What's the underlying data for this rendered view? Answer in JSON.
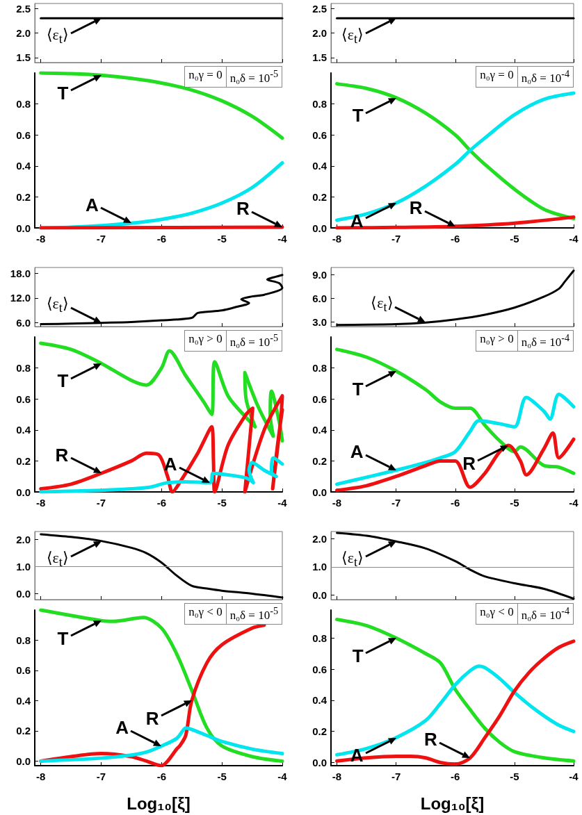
{
  "chart_data": [
    {
      "type": "line",
      "tick_labels": "y",
      "xlim": [
        -8.1,
        -4
      ],
      "xticks": [
        {
          "value": -8,
          "label": null
        },
        {
          "value": -7,
          "label": null
        },
        {
          "value": -6,
          "label": null
        },
        {
          "value": -5,
          "label": null
        },
        {
          "value": -4,
          "label": null
        }
      ],
      "ylim": [
        1.4,
        2.6
      ],
      "yticks": [
        {
          "value": 1.5,
          "label": "1.5"
        },
        {
          "value": 2,
          "label": "2.0"
        },
        {
          "value": 2.5,
          "label": "2.5"
        }
      ],
      "series": [
        {
          "color": "#000000",
          "x": [
            -8,
            -7,
            -6,
            -5,
            -4
          ],
          "values": [
            2.3,
            2.3,
            2.3,
            2.3,
            2.3
          ]
        }
      ],
      "annotations": [
        {
          "text": "⟨ε$_{t}$⟩",
          "x": -7,
          "y": 2.3
        }
      ]
    },
    {
      "type": "line",
      "tick_labels": "y",
      "xlim": [
        -8.1,
        -4
      ],
      "xticks": [
        {
          "value": -8,
          "label": null
        },
        {
          "value": -7,
          "label": null
        },
        {
          "value": -6,
          "label": null
        },
        {
          "value": -5,
          "label": null
        },
        {
          "value": -4,
          "label": null
        }
      ],
      "ylim": [
        1.4,
        2.6
      ],
      "yticks": [
        {
          "value": 1.5,
          "label": "1.5"
        },
        {
          "value": 2,
          "label": "2.0"
        },
        {
          "value": 2.5,
          "label": "2.5"
        }
      ],
      "series": [
        {
          "color": "#000000",
          "x": [
            -8,
            -7,
            -6,
            -5,
            -4
          ],
          "values": [
            2.3,
            2.3,
            2.3,
            2.3,
            2.3
          ]
        }
      ],
      "annotations": [
        {
          "text": "⟨ε$_{t}$⟩",
          "x": -7,
          "y": 2.3
        }
      ]
    },
    {
      "type": "line",
      "xlim": [
        -8.1,
        -4
      ],
      "xticks": [
        -8,
        -7,
        -6,
        -5,
        -4
      ],
      "ylim": [
        0,
        1.0
      ],
      "yticks": [
        {
          "value": 0,
          "label": "0.0"
        },
        0.2,
        0.4,
        0.6,
        0.8
      ],
      "series": [
        {
          "color": "#22dd22",
          "x": [
            -8,
            -7.5,
            -7,
            -6.5,
            -6,
            -5.5,
            -5,
            -4.5,
            -4
          ],
          "values": [
            1.0,
            0.995,
            0.985,
            0.965,
            0.935,
            0.89,
            0.82,
            0.72,
            0.58
          ]
        },
        {
          "color": "#00e5ee",
          "x": [
            -8,
            -7.5,
            -7,
            -6.5,
            -6,
            -5.5,
            -5,
            -4.5,
            -4
          ],
          "values": [
            0,
            0.005,
            0.015,
            0.03,
            0.055,
            0.095,
            0.16,
            0.26,
            0.42
          ]
        },
        {
          "color": "#ee1111",
          "x": [
            -8,
            -6,
            -4
          ],
          "values": [
            0,
            0.002,
            0.005
          ]
        }
      ],
      "annotations": [
        {
          "text": "T",
          "x": -7,
          "y": 0.985
        },
        {
          "text": "A",
          "x": -6.5,
          "y": 0.03
        },
        {
          "text": "R",
          "x": -4,
          "y": 0.005
        },
        "n₀γ = 0",
        "n₀δ = 10$^{-5}$"
      ]
    },
    {
      "type": "line",
      "xlim": [
        -8.1,
        -4
      ],
      "xticks": [
        -8,
        -7,
        -6,
        -5,
        -4
      ],
      "ylim": [
        0,
        1.0
      ],
      "yticks": [
        {
          "value": 0,
          "label": "0.0"
        },
        0.2,
        0.4,
        0.6,
        0.8
      ],
      "series": [
        {
          "color": "#22dd22",
          "x": [
            -8,
            -7.5,
            -7,
            -6.5,
            -6,
            -5.75,
            -5.5,
            -5,
            -4.5,
            -4
          ],
          "values": [
            0.93,
            0.9,
            0.84,
            0.74,
            0.6,
            0.5,
            0.41,
            0.25,
            0.12,
            0.06
          ]
        },
        {
          "color": "#00e5ee",
          "x": [
            -8,
            -7.5,
            -7,
            -6.5,
            -6,
            -5.75,
            -5.5,
            -5,
            -4.5,
            -4
          ],
          "values": [
            0.05,
            0.09,
            0.16,
            0.27,
            0.41,
            0.5,
            0.58,
            0.73,
            0.83,
            0.87
          ]
        },
        {
          "color": "#ee1111",
          "x": [
            -8,
            -7,
            -6,
            -5,
            -4
          ],
          "values": [
            0,
            0.003,
            0.01,
            0.03,
            0.07
          ]
        }
      ],
      "annotations": [
        {
          "text": "T",
          "x": -7,
          "y": 0.84
        },
        {
          "text": "A",
          "x": -7,
          "y": 0.16
        },
        {
          "text": "R",
          "x": -6,
          "y": 0.01
        },
        "n₀γ = 0",
        "n₀δ = 10$^{-4}$"
      ]
    },
    {
      "type": "line",
      "tick_labels": "y",
      "xlim": [
        -8.1,
        -4
      ],
      "xticks": [
        {
          "value": -8,
          "label": null
        },
        {
          "value": -7,
          "label": null
        },
        {
          "value": -6,
          "label": null
        },
        {
          "value": -5,
          "label": null
        },
        {
          "value": -4,
          "label": null
        }
      ],
      "ylim": [
        5.1,
        19.4
      ],
      "yticks": [
        {
          "value": 6,
          "label": "6.0"
        },
        {
          "value": 12,
          "label": "12.0"
        },
        {
          "value": 18,
          "label": "18.0"
        }
      ],
      "series": [
        {
          "color": "#000000",
          "x": [
            -8,
            -7.5,
            -7,
            -6.5,
            -6,
            -5.5,
            -5.4,
            -5,
            -4.75,
            -4.55,
            -4.68,
            -4.5,
            -4.3,
            -4.0,
            -4.05,
            -4.25,
            -4.1,
            -4.0
          ],
          "values": [
            5.7,
            5.8,
            6.0,
            6.2,
            6.6,
            7.2,
            8.4,
            9.0,
            9.9,
            10.8,
            11.7,
            12.4,
            12.8,
            14.5,
            15.6,
            16.5,
            17.2,
            17.6
          ]
        }
      ],
      "annotations": [
        {
          "text": "⟨ε$_{t}$⟩",
          "x": -7,
          "y": 6.0
        }
      ]
    },
    {
      "type": "line",
      "tick_labels": "y",
      "xlim": [
        -8.1,
        -4
      ],
      "xticks": [
        {
          "value": -8,
          "label": null
        },
        {
          "value": -7,
          "label": null
        },
        {
          "value": -6,
          "label": null
        },
        {
          "value": -5,
          "label": null
        },
        {
          "value": -4,
          "label": null
        }
      ],
      "ylim": [
        2.4,
        9.9
      ],
      "yticks": [
        {
          "value": 3,
          "label": "3.0"
        },
        {
          "value": 6,
          "label": "6.0"
        },
        {
          "value": 9,
          "label": "9.0"
        }
      ],
      "series": [
        {
          "color": "#000000",
          "x": [
            -8,
            -7,
            -6.5,
            -6,
            -5.5,
            -5,
            -4.5,
            -4.25,
            -4.15,
            -4
          ],
          "values": [
            2.6,
            2.7,
            2.9,
            3.3,
            3.9,
            4.8,
            6.2,
            7.2,
            8.1,
            9.5
          ]
        }
      ],
      "annotations": [
        {
          "text": "⟨ε$_{t}$⟩",
          "x": -6.5,
          "y": 2.9
        }
      ]
    },
    {
      "type": "line",
      "xlim": [
        -8.1,
        -4
      ],
      "xticks": [
        -8,
        -7,
        -6,
        -5,
        -4
      ],
      "ylim": [
        0,
        1.0
      ],
      "yticks": [
        {
          "value": 0,
          "label": "0.0"
        },
        0.2,
        0.4,
        0.6,
        0.8
      ],
      "series": [
        {
          "color": "#22dd22",
          "x": [
            -8,
            -7.5,
            -7,
            -6.5,
            -6.25,
            -6.0,
            -5.87,
            -5.6,
            -5.3,
            -5.17,
            -5.12,
            -4.9,
            -4.6,
            -4.45,
            -4.6,
            -4.62,
            -4.4,
            -4.15,
            -4.2,
            -4.18,
            -4.05,
            -4.0
          ],
          "values": [
            0.96,
            0.92,
            0.83,
            0.72,
            0.69,
            0.8,
            0.91,
            0.75,
            0.58,
            0.5,
            0.84,
            0.62,
            0.48,
            0.42,
            0.6,
            0.77,
            0.55,
            0.36,
            0.5,
            0.65,
            0.45,
            0.33
          ]
        },
        {
          "color": "#ee1111",
          "x": [
            -8,
            -7.5,
            -7,
            -6.5,
            -6.25,
            -6.05,
            -5.9,
            -5.82,
            -5.7,
            -5.4,
            -5.17,
            -5.14,
            -5.12,
            -4.9,
            -4.6,
            -4.49,
            -4.62,
            -4.3,
            -4.0,
            -4.03,
            -4.16,
            -4.08,
            -4.0
          ],
          "values": [
            0.02,
            0.05,
            0.12,
            0.2,
            0.25,
            0.24,
            0.1,
            0.0,
            0.06,
            0.25,
            0.42,
            0.2,
            0.0,
            0.3,
            0.5,
            0.54,
            0.0,
            0.4,
            0.62,
            0.45,
            0.02,
            0.3,
            0.53
          ]
        },
        {
          "color": "#00e5ee",
          "x": [
            -8,
            -7,
            -6.5,
            -6.2,
            -5.9,
            -5.6,
            -5.2,
            -5.17,
            -5.15,
            -4.9,
            -4.6,
            -4.48,
            -4.55,
            -4.5,
            -4.3,
            -4.1,
            -4.18,
            -4.15,
            -4.0
          ],
          "values": [
            0.0,
            0.01,
            0.02,
            0.03,
            0.06,
            0.065,
            0.06,
            0.07,
            0.12,
            0.11,
            0.09,
            0.06,
            0.14,
            0.19,
            0.14,
            0.1,
            0.13,
            0.22,
            0.18
          ]
        }
      ],
      "annotations": [
        {
          "text": "T",
          "x": -7,
          "y": 0.83
        },
        {
          "text": "R",
          "x": -7,
          "y": 0.12
        },
        {
          "text": "A",
          "x": -5.2,
          "y": 0.06
        },
        "n₀γ > 0",
        "n₀δ = 10$^{-5}$"
      ]
    },
    {
      "type": "line",
      "xlim": [
        -8.1,
        -4
      ],
      "xticks": [
        -8,
        -7,
        -6,
        -5,
        -4
      ],
      "ylim": [
        0,
        1.0
      ],
      "yticks": [
        {
          "value": 0,
          "label": "0.0"
        },
        0.2,
        0.4,
        0.6,
        0.8
      ],
      "series": [
        {
          "color": "#22dd22",
          "x": [
            -8,
            -7.5,
            -7,
            -6.5,
            -6.25,
            -6,
            -5.75,
            -5.5,
            -5.25,
            -5,
            -4.9,
            -4.5,
            -4.25,
            -4
          ],
          "values": [
            0.92,
            0.87,
            0.78,
            0.66,
            0.58,
            0.54,
            0.54,
            0.43,
            0.33,
            0.26,
            0.29,
            0.17,
            0.16,
            0.12
          ]
        },
        {
          "color": "#00e5ee",
          "x": [
            -8,
            -7,
            -6.5,
            -6.25,
            -6,
            -5.75,
            -5.6,
            -5.25,
            -5,
            -4.8,
            -4.5,
            -4.4,
            -4.25,
            -4
          ],
          "values": [
            0.05,
            0.14,
            0.19,
            0.22,
            0.26,
            0.39,
            0.46,
            0.44,
            0.42,
            0.61,
            0.52,
            0.47,
            0.63,
            0.55
          ]
        },
        {
          "color": "#ee1111",
          "x": [
            -8,
            -7.5,
            -7,
            -6.5,
            -6.25,
            -6,
            -5.75,
            -5.5,
            -5.25,
            -5.1,
            -4.9,
            -4.8,
            -4.5,
            -4.35,
            -4.25,
            -4
          ],
          "values": [
            0.01,
            0.04,
            0.1,
            0.17,
            0.2,
            0.2,
            0.03,
            0.12,
            0.26,
            0.3,
            0.2,
            0.11,
            0.28,
            0.38,
            0.22,
            0.34
          ]
        }
      ],
      "annotations": [
        {
          "text": "T",
          "x": -7,
          "y": 0.78
        },
        {
          "text": "A",
          "x": -7,
          "y": 0.14
        },
        {
          "text": "R",
          "x": -5.1,
          "y": 0.3
        },
        "n₀γ > 0",
        "n₀δ = 10$^{-4}$"
      ]
    },
    {
      "type": "line",
      "tick_labels": "y",
      "xlim": [
        -8.1,
        -4
      ],
      "xticks": [
        {
          "value": -8,
          "label": null
        },
        {
          "value": -7,
          "label": null
        },
        {
          "value": -6,
          "label": null
        },
        {
          "value": -5,
          "label": null
        },
        {
          "value": -4,
          "label": null
        }
      ],
      "ylim": [
        -0.22,
        2.3
      ],
      "yticks": [
        {
          "value": 0,
          "label": "0.0"
        },
        {
          "value": 1,
          "label": "1.0"
        },
        {
          "value": 2,
          "label": "2.0"
        }
      ],
      "series": [
        {
          "color": "#000000",
          "x": [
            -8,
            -7.5,
            -7,
            -6.5,
            -6.25,
            -6,
            -5.75,
            -5.5,
            -5.25,
            -5,
            -4.5,
            -4
          ],
          "values": [
            2.2,
            2.1,
            1.95,
            1.7,
            1.5,
            1.15,
            0.67,
            0.29,
            0.19,
            0.11,
            0.0,
            -0.14
          ]
        }
      ],
      "ref_lines": [
        {
          "axis": "y",
          "value": 1,
          "color": "#888888"
        }
      ],
      "annotations": [
        {
          "text": "⟨ε$_{t}$⟩",
          "x": -7,
          "y": 1.95
        }
      ]
    },
    {
      "type": "line",
      "tick_labels": "y",
      "xlim": [
        -8.1,
        -4
      ],
      "xticks": [
        {
          "value": -8,
          "label": null
        },
        {
          "value": -7,
          "label": null
        },
        {
          "value": -6,
          "label": null
        },
        {
          "value": -5,
          "label": null
        },
        {
          "value": -4,
          "label": null
        }
      ],
      "ylim": [
        -0.16,
        2.25
      ],
      "yticks": [
        {
          "value": 0,
          "label": "0.0"
        },
        {
          "value": 1,
          "label": "1.0"
        },
        {
          "value": 2,
          "label": "2.0"
        }
      ],
      "series": [
        {
          "color": "#000000",
          "x": [
            -8,
            -7.5,
            -7,
            -6.5,
            -6,
            -5.75,
            -5.5,
            -5,
            -4.5,
            -4
          ],
          "values": [
            2.2,
            2.1,
            1.9,
            1.65,
            1.2,
            0.9,
            0.66,
            0.42,
            0.22,
            -0.13
          ]
        }
      ],
      "ref_lines": [
        {
          "axis": "y",
          "value": 1,
          "color": "#888888"
        }
      ],
      "annotations": [
        {
          "text": "⟨ε$_{t}$⟩",
          "x": -7,
          "y": 1.9
        }
      ]
    },
    {
      "type": "line",
      "xlabel": "Log₁₀[ξ]",
      "xlim": [
        -8.1,
        -4
      ],
      "xticks": [
        -8,
        -7,
        -6,
        -5,
        -4
      ],
      "ylim": [
        -0.03,
        1.0
      ],
      "yticks": [
        {
          "value": 0,
          "label": "0.0"
        },
        0.2,
        0.4,
        0.6,
        0.8
      ],
      "series": [
        {
          "color": "#22dd22",
          "x": [
            -8,
            -7,
            -6.8,
            -6.3,
            -6,
            -5.75,
            -5.5,
            -5.25,
            -5,
            -4.5,
            -4
          ],
          "values": [
            1.0,
            0.93,
            0.925,
            0.95,
            0.88,
            0.71,
            0.47,
            0.22,
            0.1,
            0.03,
            0.0
          ]
        },
        {
          "color": "#ee1111",
          "x": [
            -8,
            -7.5,
            -7,
            -6.5,
            -6.25,
            -6,
            -5.9,
            -5.75,
            -5.7,
            -5.6,
            -5.5,
            -5.25,
            -5,
            -4.5,
            -4.3
          ],
          "values": [
            0.0,
            0.03,
            0.05,
            0.03,
            0.0,
            -0.03,
            0.0,
            0.08,
            0.1,
            0.17,
            0.4,
            0.65,
            0.77,
            0.88,
            0.9
          ]
        },
        {
          "color": "#00e5ee",
          "x": [
            -8,
            -7,
            -6.5,
            -6.25,
            -6,
            -5.75,
            -5.65,
            -5.6,
            -5.5,
            -5.25,
            -5,
            -4.5,
            -4
          ],
          "values": [
            0.0,
            0.02,
            0.04,
            0.06,
            0.1,
            0.15,
            0.2,
            0.22,
            0.21,
            0.17,
            0.13,
            0.08,
            0.05
          ]
        }
      ],
      "annotations": [
        {
          "text": "T",
          "x": -7,
          "y": 0.93
        },
        {
          "text": "R",
          "x": -5.5,
          "y": 0.4
        },
        {
          "text": "A",
          "x": -6,
          "y": 0.1
        },
        "n₀γ < 0",
        "n₀δ = 10$^{-5}$"
      ]
    },
    {
      "type": "line",
      "xlabel": "Log₁₀[ξ]",
      "xlim": [
        -8.1,
        -4
      ],
      "xticks": [
        -8,
        -7,
        -6,
        -5,
        -4
      ],
      "ylim": [
        -0.02,
        0.98
      ],
      "yticks": [
        {
          "value": 0,
          "label": "0.0"
        },
        0.2,
        0.4,
        0.6,
        0.8
      ],
      "series": [
        {
          "color": "#22dd22",
          "x": [
            -8,
            -7.5,
            -7,
            -6.5,
            -6.25,
            -6,
            -5.75,
            -5.5,
            -5.25,
            -5,
            -4.5,
            -4
          ],
          "values": [
            0.92,
            0.88,
            0.8,
            0.7,
            0.64,
            0.47,
            0.34,
            0.22,
            0.13,
            0.07,
            0.03,
            0.01
          ]
        },
        {
          "color": "#00e5ee",
          "x": [
            -8,
            -7.5,
            -7,
            -6.5,
            -6.25,
            -6,
            -5.75,
            -5.6,
            -5.5,
            -5.25,
            -5,
            -4.75,
            -4.5,
            -4.25,
            -4
          ],
          "values": [
            0.05,
            0.09,
            0.16,
            0.27,
            0.38,
            0.5,
            0.59,
            0.62,
            0.61,
            0.54,
            0.45,
            0.37,
            0.3,
            0.24,
            0.2
          ]
        },
        {
          "color": "#ee1111",
          "x": [
            -8,
            -7.5,
            -7,
            -6.75,
            -6.5,
            -6.25,
            -6,
            -5.75,
            -5.5,
            -5.25,
            -5,
            -4.75,
            -4.5,
            -4.25,
            -4
          ],
          "values": [
            0.01,
            0.03,
            0.04,
            0.04,
            0.03,
            0.0,
            -0.01,
            0.03,
            0.16,
            0.3,
            0.46,
            0.58,
            0.67,
            0.74,
            0.78
          ]
        }
      ],
      "annotations": [
        {
          "text": "T",
          "x": -7,
          "y": 0.8
        },
        {
          "text": "A",
          "x": -7,
          "y": 0.16
        },
        {
          "text": "R",
          "x": -5.75,
          "y": 0.03
        },
        "n₀γ < 0",
        "n₀δ = 10$^{-4}$"
      ]
    }
  ]
}
